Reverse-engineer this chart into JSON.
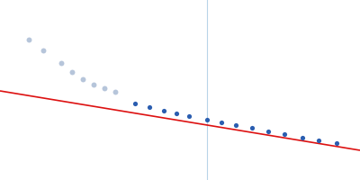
{
  "background_color": "#ffffff",
  "fig_width": 4.0,
  "fig_height": 2.0,
  "dpi": 100,
  "excluded_points_x": [
    0.08,
    0.12,
    0.17,
    0.2,
    0.23,
    0.26,
    0.29,
    0.32
  ],
  "excluded_points_y": [
    0.78,
    0.72,
    0.65,
    0.6,
    0.56,
    0.53,
    0.51,
    0.49
  ],
  "excluded_color": "#aabbd4",
  "excluded_size": 18,
  "excluded_alpha": 0.85,
  "fit_points_x": [
    0.375,
    0.415,
    0.455,
    0.49,
    0.525,
    0.575,
    0.615,
    0.655,
    0.7,
    0.745,
    0.79,
    0.84,
    0.885,
    0.935
  ],
  "fit_points_y": [
    0.425,
    0.405,
    0.385,
    0.37,
    0.355,
    0.335,
    0.32,
    0.305,
    0.288,
    0.27,
    0.255,
    0.237,
    0.222,
    0.205
  ],
  "fit_color": "#2a5db0",
  "fit_size": 14,
  "line_x_start": 0.0,
  "line_y_start": 0.495,
  "line_x_end": 1.0,
  "line_y_end": 0.165,
  "line_color": "#dd1111",
  "line_width": 1.2,
  "vline_x": 0.575,
  "vline_color": "#b8d4e8",
  "vline_lw": 0.8,
  "xlim": [
    0.0,
    1.0
  ],
  "ylim": [
    0.0,
    1.0
  ]
}
